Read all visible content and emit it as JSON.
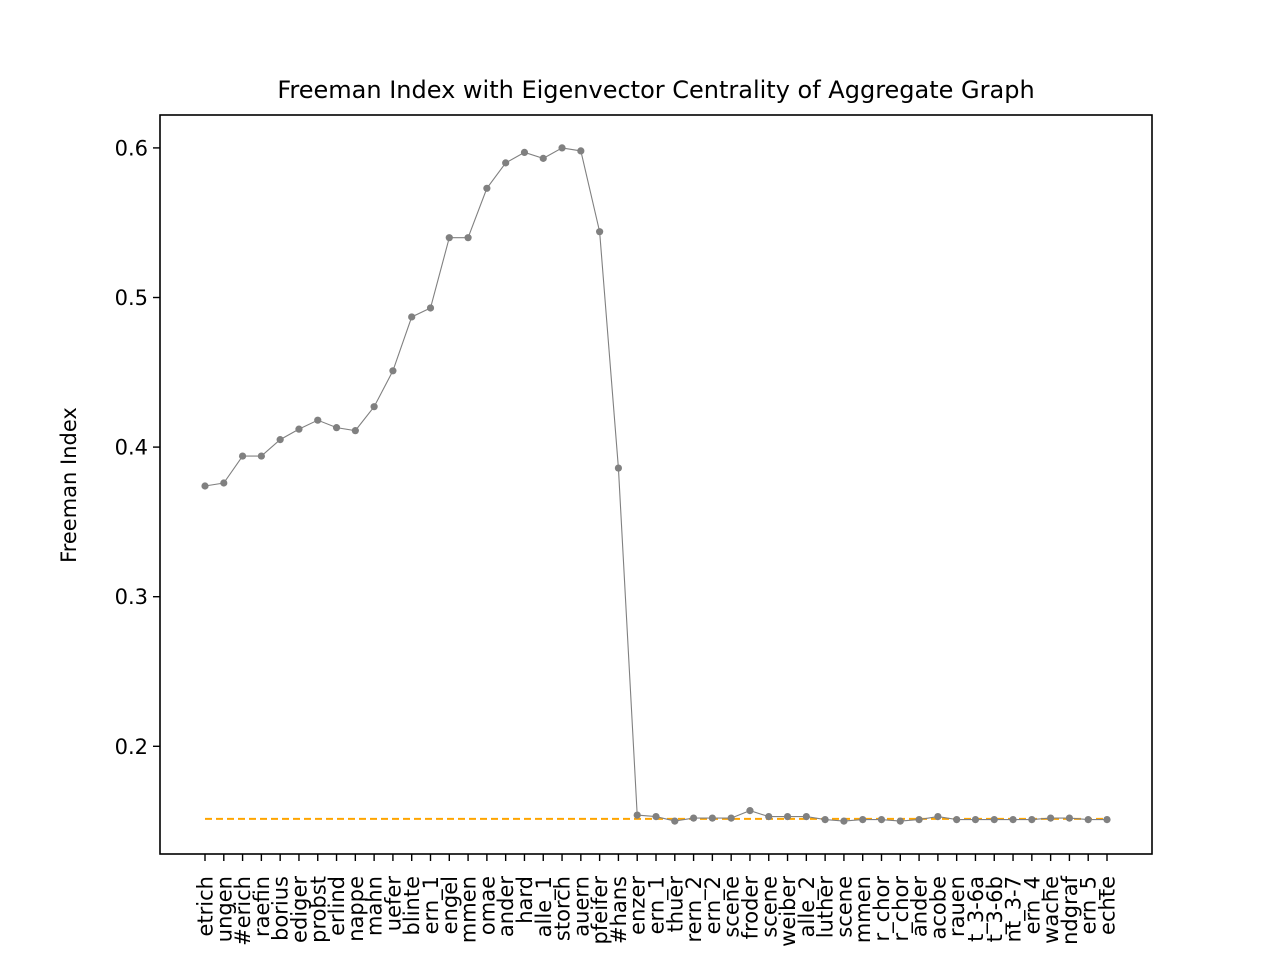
{
  "chart_data": {
    "type": "line",
    "title": "Freeman Index with Eigenvector Centrality of Aggregate Graph",
    "xlabel": "",
    "ylabel": "Freeman Index",
    "ylim": [
      0.128,
      0.622
    ],
    "yticks": [
      0.2,
      0.3,
      0.4,
      0.5,
      0.6
    ],
    "grid": false,
    "legend": "none",
    "colors": {
      "series": "#808080",
      "reference": "#ffa500"
    },
    "categories": [
      "etrich",
      "ungen",
      "#erich",
      "raefin",
      "borius",
      "ediger",
      "probst",
      "erlind",
      "nappe",
      "mahn",
      "uefer",
      "blinte",
      "ern_1",
      "engel",
      "mmen",
      "omae",
      "ander",
      "hard",
      "alle_1",
      "storch",
      "auern",
      "pfeifer",
      "#hans",
      "enzer",
      "ern_1",
      "thuer",
      "rern_2",
      "ern_2",
      "scene",
      "froder",
      "scene",
      "weiber",
      "alle_2",
      "luther",
      "scene",
      "mmen",
      "r_chor",
      "r_chor",
      "ander",
      "acobe",
      "rauen",
      "t_3-6a",
      "t_3-6b",
      "nt_3-7",
      "ern_4",
      "wache",
      "ndgraf",
      "ern_5",
      "echte"
    ],
    "series": [
      {
        "values": [
          0.374,
          0.376,
          0.394,
          0.394,
          0.405,
          0.412,
          0.418,
          0.413,
          0.411,
          0.427,
          0.451,
          0.487,
          0.493,
          0.54,
          0.54,
          0.573,
          0.59,
          0.597,
          0.593,
          0.6,
          0.598,
          0.544,
          0.386,
          0.154,
          0.153,
          0.15,
          0.152,
          0.152,
          0.152,
          0.157,
          0.153,
          0.153,
          0.153,
          0.151,
          0.15,
          0.151,
          0.151,
          0.15,
          0.151,
          0.153,
          0.151,
          0.151,
          0.151,
          0.151,
          0.151,
          0.152,
          0.152,
          0.151,
          0.151
        ]
      }
    ],
    "reference_line": {
      "y": 0.1515,
      "x_from_index": 0,
      "x_to_index": 48,
      "style": "dashed"
    }
  }
}
